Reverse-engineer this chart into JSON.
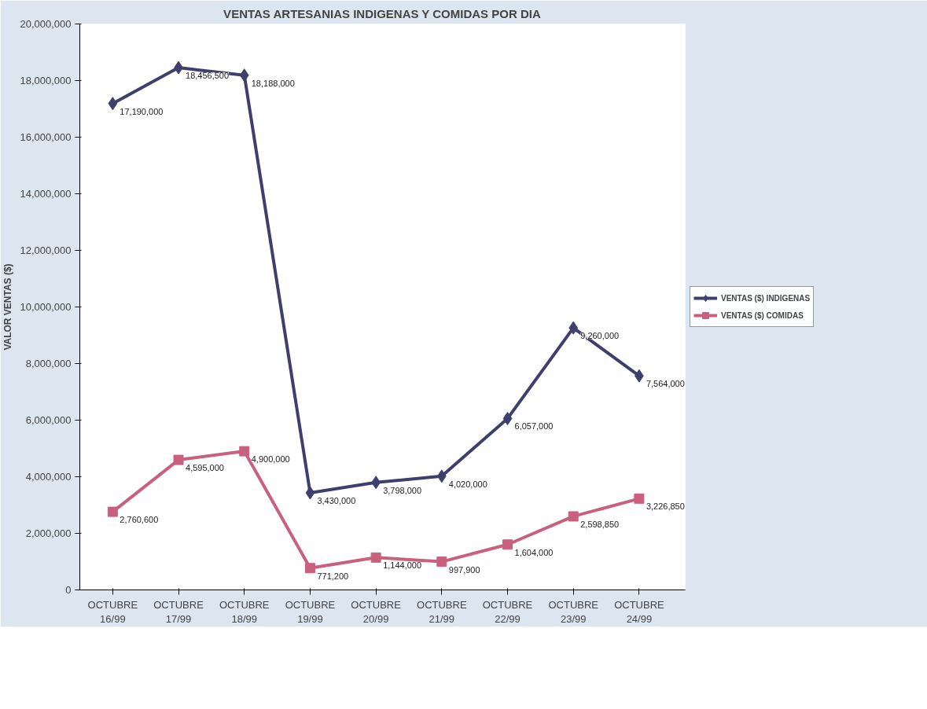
{
  "chart_data": {
    "type": "line",
    "title": "VENTAS ARTESANIAS INDIGENAS Y COMIDAS POR DIA",
    "ylabel": "VALOR VENTAS ($)",
    "categories": [
      "OCTUBRE\n16/99",
      "OCTUBRE\n17/99",
      "OCTUBRE\n18/99",
      "OCTUBRE\n19/99",
      "OCTUBRE\n20/99",
      "OCTUBRE\n21/99",
      "OCTUBRE\n22/99",
      "OCTUBRE\n23/99",
      "OCTUBRE\n24/99"
    ],
    "series": [
      {
        "name": "VENTAS ($) INDIGENAS",
        "color": "#3f3f6e",
        "marker": "diamond",
        "values": [
          17190000,
          18456500,
          18188000,
          3430000,
          3798000,
          4020000,
          6057000,
          9260000,
          7564000
        ],
        "value_labels": [
          "17,190,000",
          "18,456,500",
          "18,188,000",
          "3,430,000",
          "3,798,000",
          "4,020,000",
          "6,057,000",
          "9,260,000",
          "7,564,000"
        ]
      },
      {
        "name": "VENTAS ($) COMIDAS",
        "color": "#c8607e",
        "marker": "square",
        "values": [
          2760600,
          4595000,
          4900000,
          771200,
          1144000,
          997900,
          1604000,
          2598850,
          3226850
        ],
        "value_labels": [
          "2,760,600",
          "4,595,000",
          "4,900,000",
          "771,200",
          "1,144,000",
          "997,900",
          "1,604,000",
          "2,598,850",
          "3,226,850"
        ]
      }
    ],
    "ylim": [
      0,
      20000000
    ],
    "yticks": [
      {
        "value": 0,
        "label": "0"
      },
      {
        "value": 2000000,
        "label": "2,000,000"
      },
      {
        "value": 4000000,
        "label": "4,000,000"
      },
      {
        "value": 6000000,
        "label": "6,000,000"
      },
      {
        "value": 8000000,
        "label": "8,000,000"
      },
      {
        "value": 10000000,
        "label": "10,000,000"
      },
      {
        "value": 12000000,
        "label": "12,000,000"
      },
      {
        "value": 14000000,
        "label": "14,000,000"
      },
      {
        "value": 16000000,
        "label": "16,000,000"
      },
      {
        "value": 18000000,
        "label": "18,000,000"
      },
      {
        "value": 20000000,
        "label": "20,000,000"
      }
    ],
    "grid": false,
    "legend": "right",
    "line_style": "solid"
  }
}
